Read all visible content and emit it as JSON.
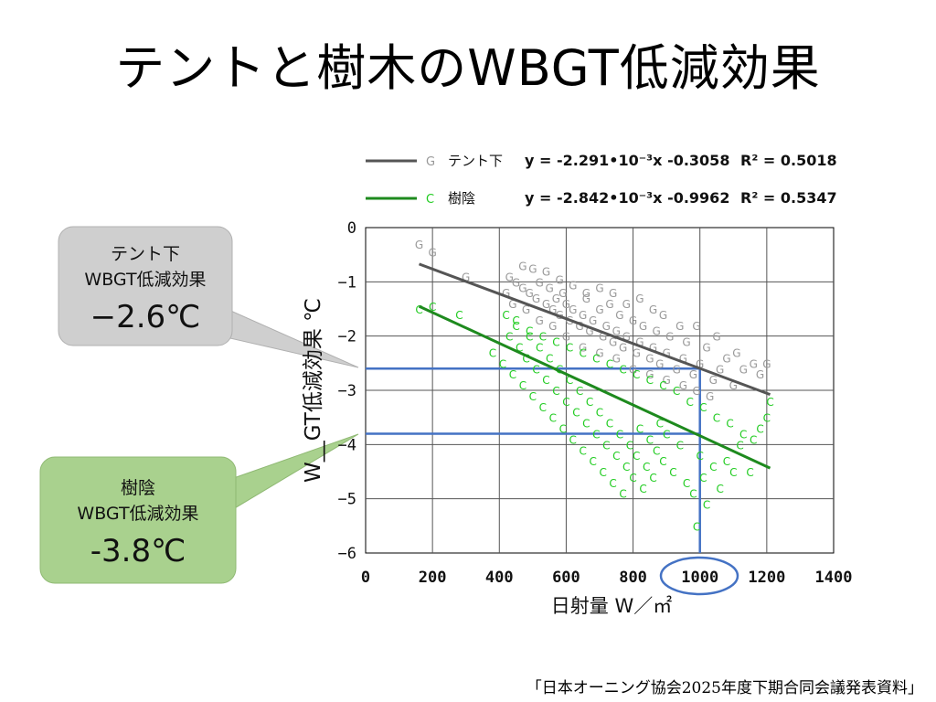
{
  "slide": {
    "title": "テントと樹木のWBGT低減効果",
    "footer": "「日本オーニング協会2025年度下期合同会議発表資料」"
  },
  "callouts": [
    {
      "line1": "テント下",
      "line2": "WBGT低減効果",
      "value": "−2.6℃",
      "color": "#cfcfcf",
      "border": "#b0b0b0"
    },
    {
      "line1": "樹陰",
      "line2": "WBGT低減効果",
      "value": "-3.8℃",
      "color": "#a9d18e",
      "border": "#8fb973"
    }
  ],
  "chart_data": {
    "type": "scatter",
    "xlabel": "日射量 W／㎡",
    "ylabel": "W__GT低減効果 ℃",
    "xlim": [
      0,
      1400
    ],
    "ylim": [
      -6,
      0
    ],
    "xticks": [
      "0",
      "200",
      "400",
      "600",
      "800",
      "1000",
      "1200",
      "1400"
    ],
    "yticks": [
      "0",
      "−1",
      "−2",
      "−3",
      "−4",
      "−5",
      "−6"
    ],
    "grid": true,
    "legend_position": "top",
    "series": [
      {
        "name": "テント下",
        "marker": "G",
        "color": "#999999",
        "line_color": "#555555",
        "equation": "y = -2.291•10⁻³x -0.3058",
        "r2": "R² = 0.5018",
        "fit": {
          "slope": -0.002291,
          "intercept": -0.3058,
          "x_range": [
            160,
            1210
          ]
        },
        "points": [
          [
            160,
            -0.3
          ],
          [
            200,
            -0.45
          ],
          [
            300,
            -0.9
          ],
          [
            430,
            -0.9
          ],
          [
            450,
            -1.0
          ],
          [
            470,
            -1.1
          ],
          [
            490,
            -1.2
          ],
          [
            510,
            -1.3
          ],
          [
            520,
            -1.0
          ],
          [
            540,
            -1.4
          ],
          [
            550,
            -1.1
          ],
          [
            560,
            -1.5
          ],
          [
            570,
            -1.3
          ],
          [
            580,
            -1.6
          ],
          [
            590,
            -1.2
          ],
          [
            600,
            -1.4
          ],
          [
            610,
            -1.7
          ],
          [
            620,
            -1.5
          ],
          [
            640,
            -1.8
          ],
          [
            650,
            -1.6
          ],
          [
            660,
            -1.3
          ],
          [
            670,
            -1.9
          ],
          [
            680,
            -1.7
          ],
          [
            700,
            -1.5
          ],
          [
            710,
            -2.0
          ],
          [
            720,
            -1.8
          ],
          [
            730,
            -1.4
          ],
          [
            740,
            -2.1
          ],
          [
            750,
            -1.9
          ],
          [
            760,
            -1.6
          ],
          [
            770,
            -2.2
          ],
          [
            780,
            -2.0
          ],
          [
            800,
            -1.7
          ],
          [
            810,
            -2.3
          ],
          [
            820,
            -2.1
          ],
          [
            830,
            -1.8
          ],
          [
            850,
            -2.4
          ],
          [
            860,
            -2.2
          ],
          [
            870,
            -1.9
          ],
          [
            880,
            -2.5
          ],
          [
            900,
            -2.3
          ],
          [
            910,
            -2.0
          ],
          [
            930,
            -2.6
          ],
          [
            950,
            -2.4
          ],
          [
            960,
            -2.1
          ],
          [
            980,
            -2.7
          ],
          [
            1000,
            -2.5
          ],
          [
            1020,
            -2.2
          ],
          [
            1040,
            -2.8
          ],
          [
            1060,
            -2.6
          ],
          [
            1080,
            -2.4
          ],
          [
            1100,
            -2.9
          ],
          [
            1130,
            -2.6
          ],
          [
            1160,
            -2.5
          ],
          [
            1180,
            -2.7
          ],
          [
            1200,
            -2.5
          ],
          [
            1110,
            -2.3
          ],
          [
            1050,
            -2.0
          ],
          [
            990,
            -1.8
          ],
          [
            940,
            -1.8
          ],
          [
            890,
            -1.6
          ],
          [
            860,
            -1.5
          ],
          [
            820,
            -1.3
          ],
          [
            780,
            -1.4
          ],
          [
            740,
            -1.2
          ],
          [
            700,
            -1.1
          ],
          [
            660,
            -1.2
          ],
          [
            620,
            -1.05
          ],
          [
            580,
            -0.95
          ],
          [
            540,
            -0.8
          ],
          [
            500,
            -0.75
          ],
          [
            470,
            -0.7
          ],
          [
            600,
            -2.0
          ],
          [
            650,
            -2.2
          ],
          [
            700,
            -2.3
          ],
          [
            750,
            -2.4
          ],
          [
            800,
            -2.6
          ],
          [
            850,
            -2.7
          ],
          [
            900,
            -2.8
          ],
          [
            950,
            -2.9
          ],
          [
            990,
            -3.0
          ],
          [
            1030,
            -3.1
          ],
          [
            560,
            -1.8
          ],
          [
            520,
            -1.7
          ],
          [
            480,
            -1.5
          ],
          [
            440,
            -1.4
          ],
          [
            420,
            -1.2
          ]
        ]
      },
      {
        "name": "樹陰",
        "marker": "C",
        "color": "#22cc22",
        "line_color": "#1e8a1e",
        "equation": "y = -2.842•10⁻³x -0.9962",
        "r2": "R² = 0.5347",
        "fit": {
          "slope": -0.002842,
          "intercept": -0.9962,
          "x_range": [
            160,
            1210
          ]
        },
        "points": [
          [
            160,
            -1.5
          ],
          [
            200,
            -1.45
          ],
          [
            280,
            -1.6
          ],
          [
            380,
            -2.3
          ],
          [
            410,
            -2.5
          ],
          [
            430,
            -2.0
          ],
          [
            440,
            -2.7
          ],
          [
            450,
            -1.8
          ],
          [
            460,
            -2.2
          ],
          [
            470,
            -2.9
          ],
          [
            480,
            -2.4
          ],
          [
            490,
            -2.0
          ],
          [
            500,
            -3.1
          ],
          [
            510,
            -2.6
          ],
          [
            520,
            -2.2
          ],
          [
            530,
            -3.3
          ],
          [
            540,
            -2.8
          ],
          [
            550,
            -2.4
          ],
          [
            560,
            -3.5
          ],
          [
            570,
            -3.0
          ],
          [
            580,
            -2.6
          ],
          [
            590,
            -3.7
          ],
          [
            600,
            -3.2
          ],
          [
            610,
            -2.8
          ],
          [
            620,
            -3.9
          ],
          [
            630,
            -3.4
          ],
          [
            640,
            -3.0
          ],
          [
            650,
            -4.1
          ],
          [
            660,
            -3.6
          ],
          [
            670,
            -3.2
          ],
          [
            680,
            -4.3
          ],
          [
            690,
            -3.8
          ],
          [
            700,
            -3.4
          ],
          [
            710,
            -4.5
          ],
          [
            720,
            -4.0
          ],
          [
            730,
            -3.6
          ],
          [
            740,
            -4.7
          ],
          [
            750,
            -4.2
          ],
          [
            760,
            -3.8
          ],
          [
            770,
            -4.9
          ],
          [
            780,
            -4.4
          ],
          [
            790,
            -4.0
          ],
          [
            800,
            -4.6
          ],
          [
            810,
            -4.2
          ],
          [
            820,
            -3.7
          ],
          [
            830,
            -4.8
          ],
          [
            840,
            -4.4
          ],
          [
            850,
            -3.9
          ],
          [
            860,
            -4.6
          ],
          [
            870,
            -4.1
          ],
          [
            880,
            -3.6
          ],
          [
            890,
            -4.3
          ],
          [
            900,
            -3.8
          ],
          [
            920,
            -4.5
          ],
          [
            940,
            -4.0
          ],
          [
            960,
            -4.7
          ],
          [
            980,
            -4.9
          ],
          [
            990,
            -5.5
          ],
          [
            1000,
            -4.2
          ],
          [
            1010,
            -4.6
          ],
          [
            1020,
            -5.1
          ],
          [
            1040,
            -4.4
          ],
          [
            1060,
            -4.8
          ],
          [
            1080,
            -4.3
          ],
          [
            1100,
            -4.5
          ],
          [
            1120,
            -4.0
          ],
          [
            1150,
            -4.5
          ],
          [
            1180,
            -3.7
          ],
          [
            1200,
            -3.5
          ],
          [
            1210,
            -3.2
          ],
          [
            1160,
            -3.9
          ],
          [
            1130,
            -3.8
          ],
          [
            1090,
            -3.6
          ],
          [
            1050,
            -3.5
          ],
          [
            1010,
            -3.3
          ],
          [
            970,
            -3.2
          ],
          [
            930,
            -3.0
          ],
          [
            890,
            -2.9
          ],
          [
            850,
            -2.8
          ],
          [
            810,
            -2.7
          ],
          [
            770,
            -2.6
          ],
          [
            730,
            -2.5
          ],
          [
            690,
            -2.4
          ],
          [
            650,
            -2.3
          ],
          [
            610,
            -2.2
          ],
          [
            570,
            -2.1
          ],
          [
            530,
            -2.0
          ],
          [
            490,
            -1.9
          ],
          [
            450,
            -1.7
          ],
          [
            420,
            -1.6
          ]
        ]
      }
    ],
    "reference_lines": [
      {
        "y": -2.6,
        "x_from": 0,
        "x_to": 1000
      },
      {
        "y": -3.8,
        "x_from": 0,
        "x_to": 1000
      },
      {
        "x": 1000,
        "y_from": -6,
        "y_to": -2.6
      }
    ],
    "highlight_tick": "1000"
  }
}
